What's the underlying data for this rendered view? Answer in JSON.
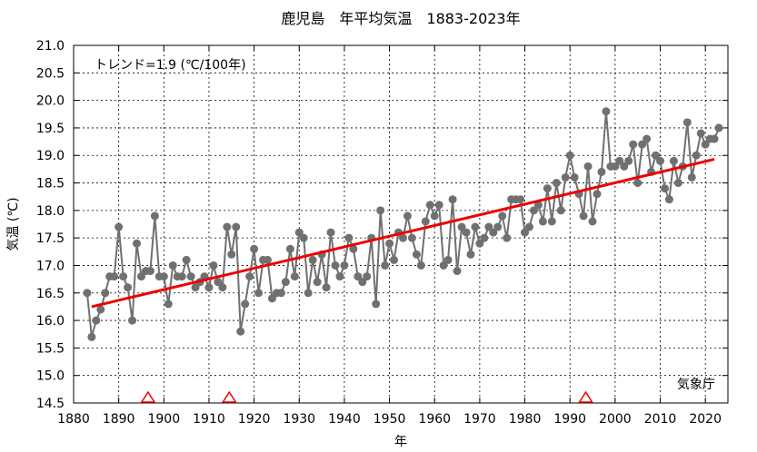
{
  "chart_data": {
    "type": "line",
    "title": "鹿児島　年平均気温　1883-2023年",
    "xlabel": "年",
    "ylabel": "気温 (℃)",
    "trend_label": "トレンド=1.9 (℃/100年)",
    "source_label": "気象庁",
    "xlim": [
      1880,
      2025
    ],
    "ylim": [
      14.5,
      21.0
    ],
    "x_ticks": [
      "1880",
      "1890",
      "1900",
      "1910",
      "1920",
      "1930",
      "1940",
      "1950",
      "1960",
      "1970",
      "1980",
      "1990",
      "2000",
      "2010",
      "2020"
    ],
    "y_ticks": [
      "21.0",
      "20.5",
      "20.0",
      "19.5",
      "19.0",
      "18.5",
      "18.0",
      "17.5",
      "17.0",
      "16.5",
      "16.0",
      "15.5",
      "15.0",
      "14.5"
    ],
    "grid": true,
    "series": [
      {
        "x": [
          1883,
          1884,
          1885,
          1886,
          1887,
          1888,
          1889,
          1890,
          1891,
          1892,
          1893,
          1894,
          1895,
          1896,
          1897,
          1898,
          1899,
          1900,
          1901,
          1902,
          1903,
          1904,
          1905,
          1906,
          1907,
          1908,
          1909,
          1910,
          1911,
          1912,
          1913,
          1914,
          1915,
          1916,
          1917,
          1918,
          1919,
          1920,
          1921,
          1922,
          1923,
          1924,
          1925,
          1926,
          1927,
          1928,
          1929,
          1930,
          1931,
          1932,
          1933,
          1934,
          1935,
          1936,
          1937,
          1938,
          1939,
          1940,
          1941,
          1942,
          1943,
          1944,
          1945,
          1946,
          1947,
          1948,
          1949,
          1950,
          1951,
          1952,
          1953,
          1954,
          1955,
          1956,
          1957,
          1958,
          1959,
          1960,
          1961,
          1962,
          1963,
          1964,
          1965,
          1966,
          1967,
          1968,
          1969,
          1970,
          1971,
          1972,
          1973,
          1974,
          1975,
          1976,
          1977,
          1978,
          1979,
          1980,
          1981,
          1982,
          1983,
          1984,
          1985,
          1986,
          1987,
          1988,
          1989,
          1990,
          1991,
          1992,
          1993,
          1994,
          1995,
          1996,
          1997,
          1998,
          1999,
          2000,
          2001,
          2002,
          2003,
          2004,
          2005,
          2006,
          2007,
          2008,
          2009,
          2010,
          2011,
          2012,
          2013,
          2014,
          2015,
          2016,
          2017,
          2018,
          2019,
          2020,
          2021,
          2022,
          2023
        ],
        "values": [
          16.5,
          15.7,
          16.0,
          16.2,
          16.5,
          16.8,
          16.8,
          17.7,
          16.8,
          16.6,
          16.0,
          17.4,
          16.8,
          16.9,
          16.9,
          17.9,
          16.8,
          16.8,
          16.3,
          17.0,
          16.8,
          16.8,
          17.1,
          16.8,
          16.6,
          16.7,
          16.8,
          16.6,
          17.0,
          16.7,
          16.6,
          17.7,
          17.2,
          17.7,
          15.8,
          16.3,
          16.8,
          17.3,
          16.5,
          17.1,
          17.1,
          16.4,
          16.5,
          16.5,
          16.7,
          17.3,
          16.8,
          17.6,
          17.5,
          16.5,
          17.1,
          16.7,
          17.2,
          16.6,
          17.6,
          17.0,
          16.8,
          17.0,
          17.5,
          17.3,
          16.8,
          16.7,
          16.8,
          17.5,
          16.3,
          18.0,
          17.0,
          17.4,
          17.1,
          17.6,
          17.5,
          17.9,
          17.5,
          17.2,
          17.0,
          17.8,
          18.1,
          17.9,
          18.1,
          17.0,
          17.1,
          18.2,
          16.9,
          17.7,
          17.6,
          17.2,
          17.7,
          17.4,
          17.5,
          17.7,
          17.6,
          17.7,
          17.9,
          17.5,
          18.2,
          18.2,
          18.2,
          17.6,
          17.7,
          18.0,
          18.1,
          17.8,
          18.4,
          17.8,
          18.5,
          18.0,
          18.6,
          19.0,
          18.6,
          18.3,
          17.9,
          18.8,
          17.8,
          18.3,
          18.7,
          19.8,
          18.8,
          18.8,
          18.9,
          18.8,
          18.9,
          19.2,
          18.5,
          19.2,
          19.3,
          18.7,
          19.0,
          18.9,
          18.4,
          18.2,
          18.9,
          18.5,
          18.8,
          19.6,
          18.6,
          19.0,
          19.4,
          19.2,
          19.3,
          19.3,
          19.5
        ],
        "color": "#707070"
      }
    ],
    "trend": {
      "x": [
        1884,
        2022
      ],
      "y": [
        16.25,
        18.93
      ],
      "color": "#ee0000"
    },
    "markers": {
      "x": [
        1896.5,
        1914.5,
        1993.5
      ],
      "color": "#ee0000"
    }
  }
}
